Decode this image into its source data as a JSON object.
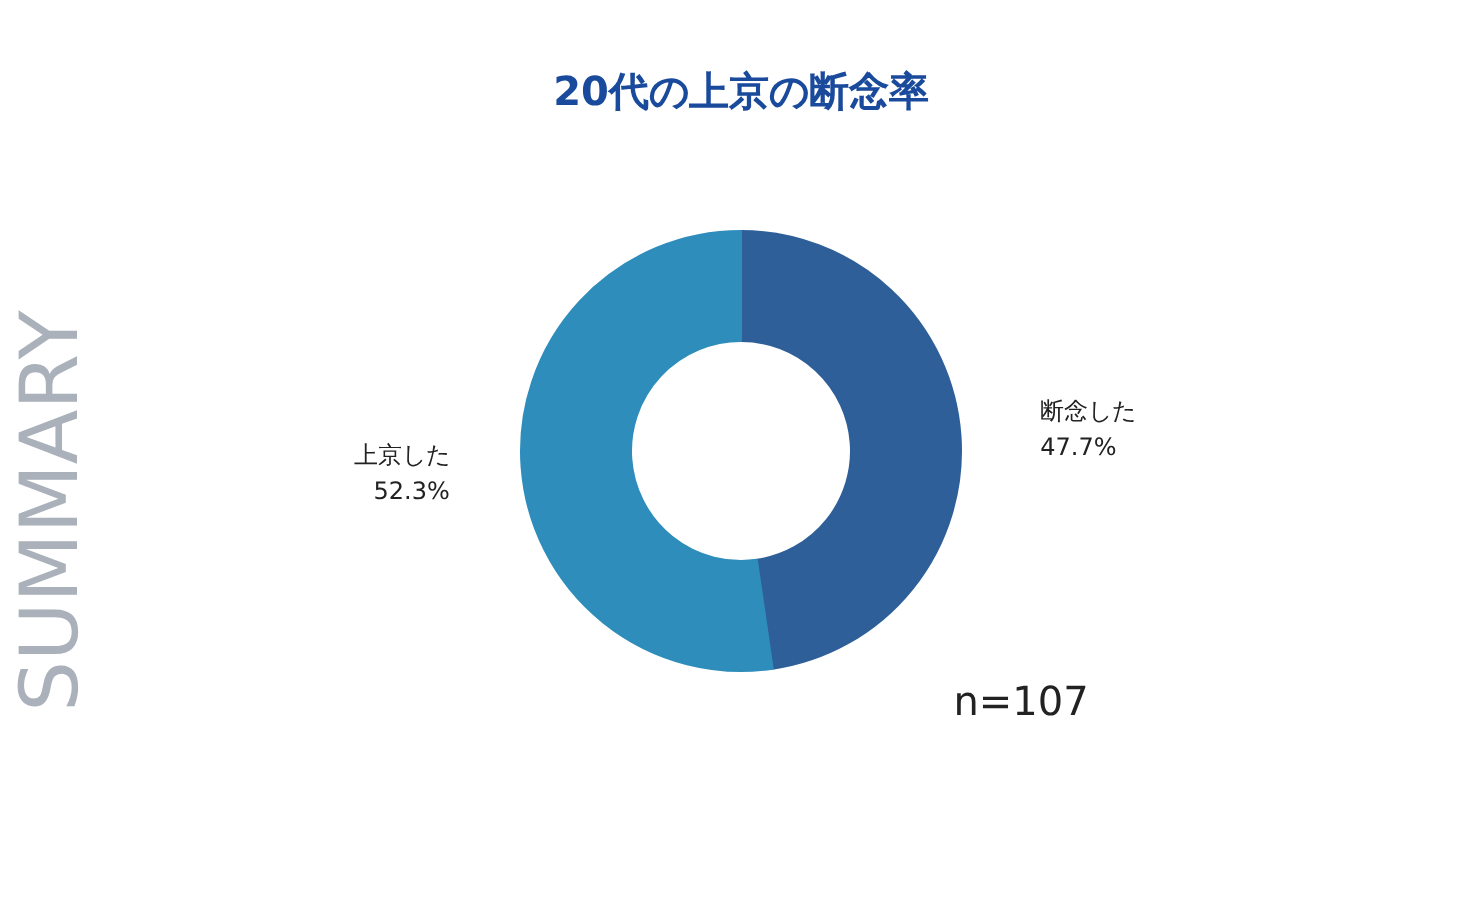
{
  "chart_data": {
    "type": "donut",
    "title": "20代の上京の断念率",
    "categories": [
      "断念した",
      "上京した"
    ],
    "values": [
      47.7,
      52.3
    ],
    "value_labels": [
      "47.7%",
      "52.3%"
    ],
    "colors": [
      "#2e5f99",
      "#2e8dbb"
    ],
    "annotations": [
      "n=107",
      "SUMMARY"
    ]
  }
}
